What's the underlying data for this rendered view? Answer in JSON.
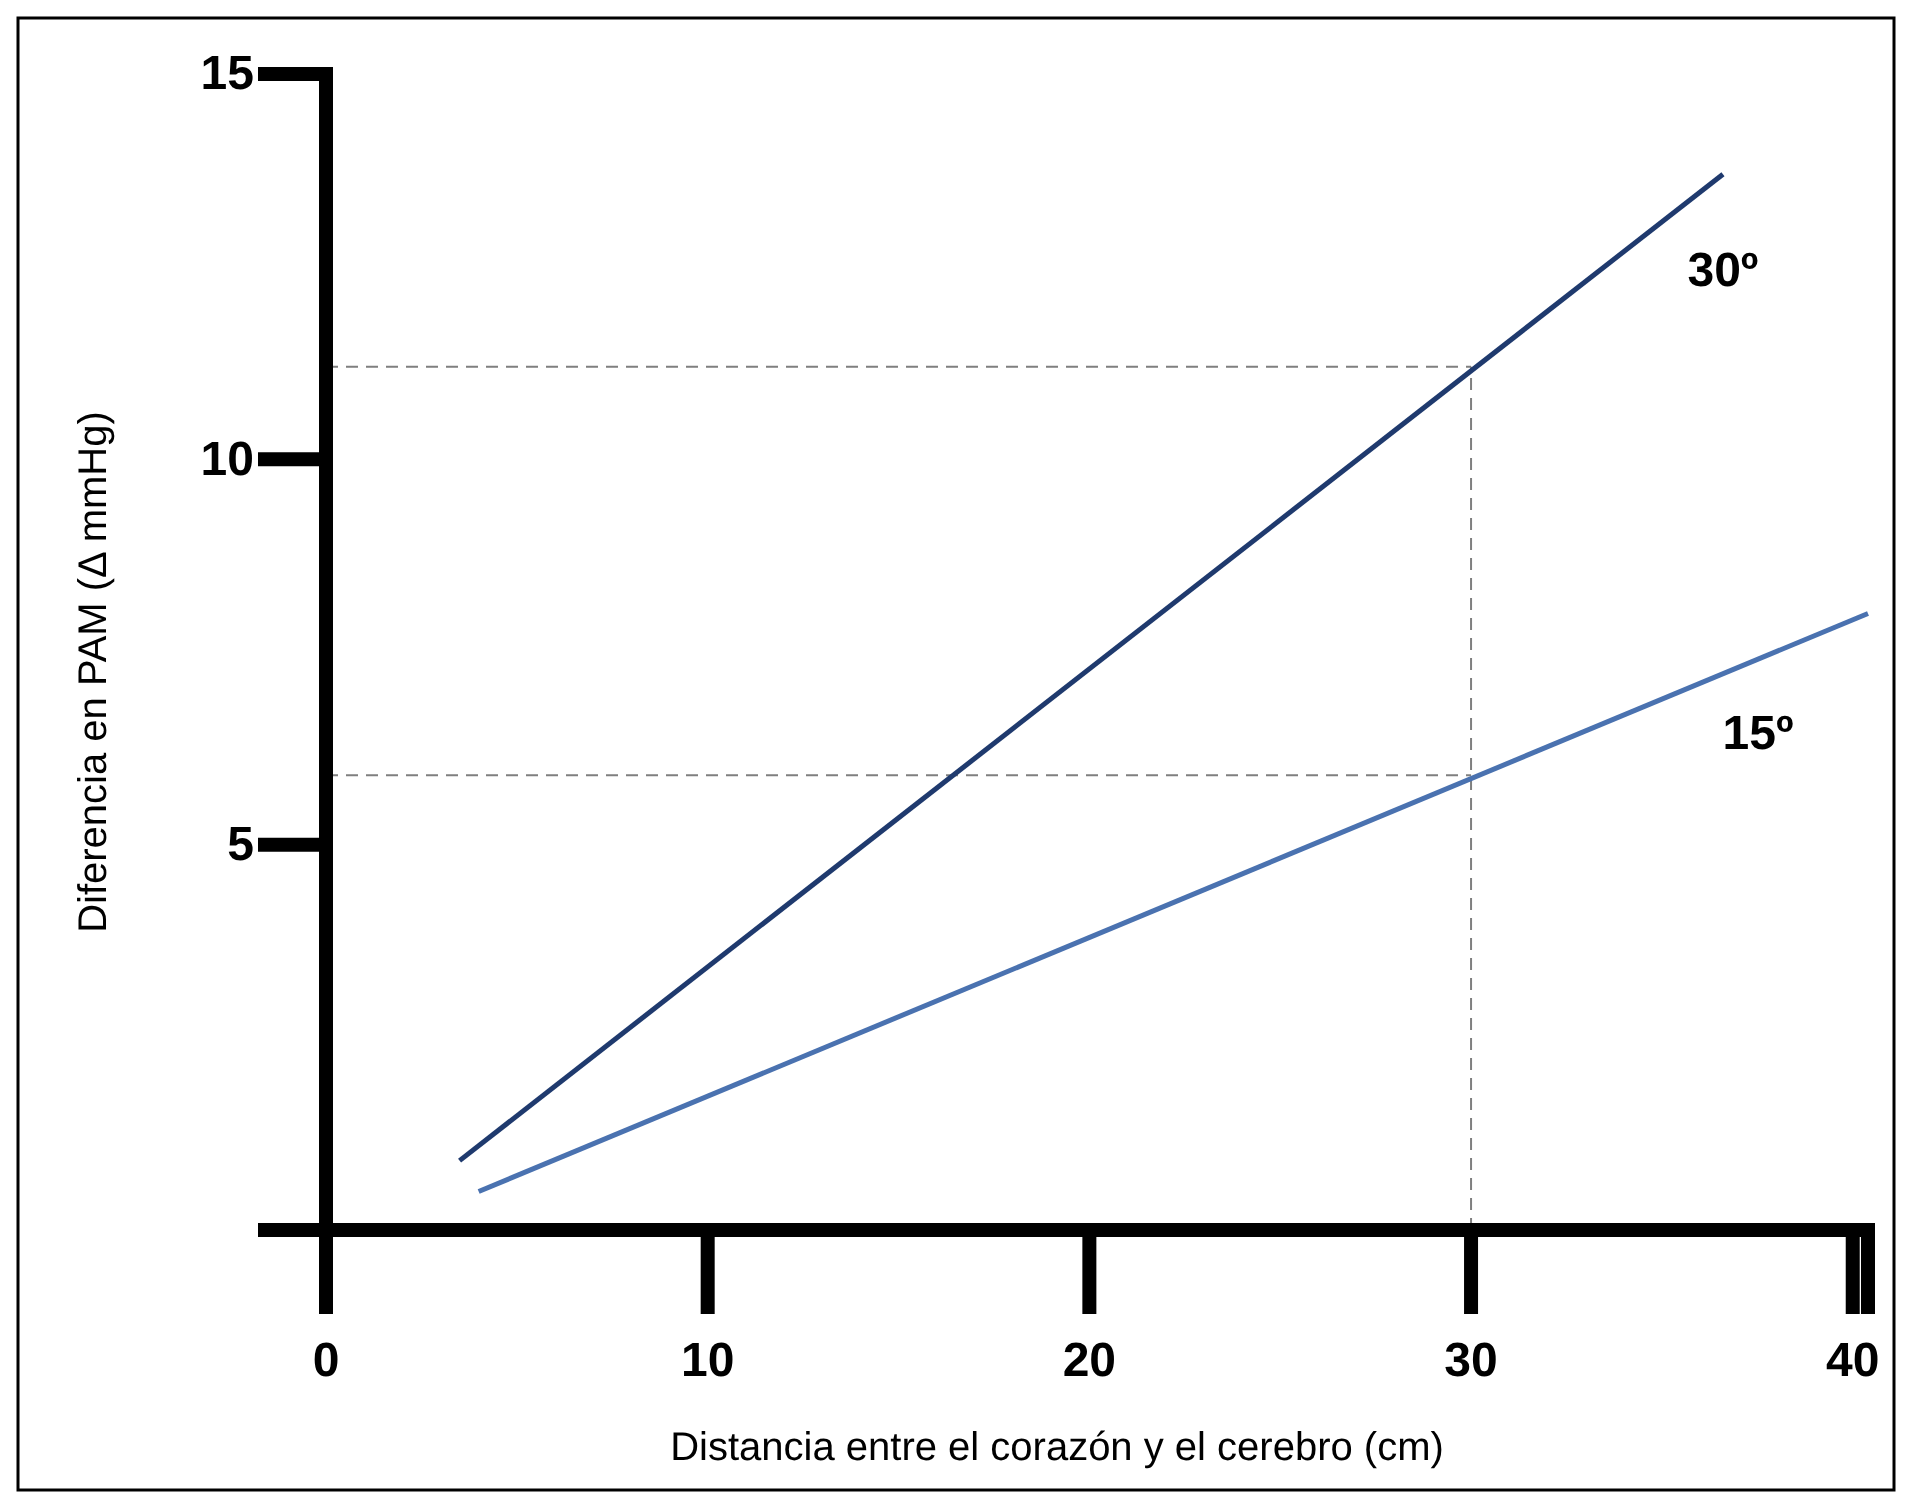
{
  "chart_data": {
    "type": "line",
    "xlabel": "Distancia entre el corazón y el cerebro (cm)",
    "ylabel": "Diferencia en PAM (Δ mmHg)",
    "xlim": [
      0,
      40.4
    ],
    "ylim": [
      0,
      15
    ],
    "xticks": [
      0,
      10,
      20,
      30,
      40
    ],
    "yticks": [
      5,
      10,
      15
    ],
    "grid": false,
    "marker": "none",
    "line_style": "solid",
    "series": [
      {
        "name": "30º",
        "color": "#1f3a6e",
        "x": [
          3.5,
          36.6
        ],
        "values": [
          0.9,
          13.7
        ]
      },
      {
        "name": "15º",
        "color": "#4a72b0",
        "x": [
          4,
          40.4
        ],
        "values": [
          0.5,
          8
        ]
      }
    ],
    "ref_lines": [
      {
        "axis": "y",
        "value": 11.2,
        "color": "#7f7f7f",
        "line_style": "dashed"
      },
      {
        "axis": "y",
        "value": 5.9,
        "color": "#7f7f7f",
        "line_style": "dashed"
      },
      {
        "axis": "x",
        "value": 30,
        "color": "#7f7f7f",
        "line_style": "dashed"
      }
    ]
  }
}
